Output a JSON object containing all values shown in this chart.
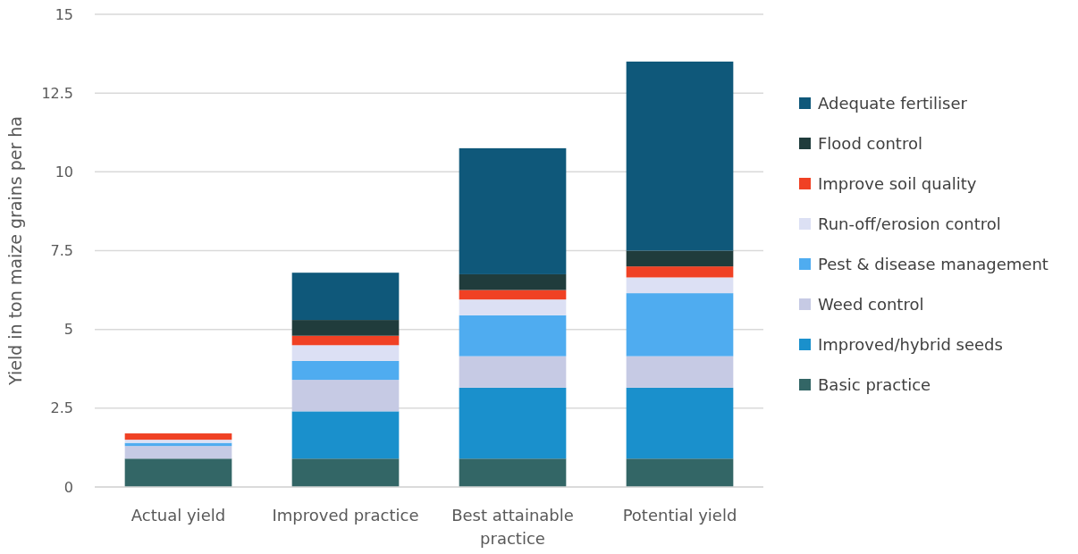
{
  "chart_data": {
    "type": "bar",
    "stacked": true,
    "ylabel": "Yield in ton maize grains per ha",
    "categories": [
      "Actual yield",
      "Improved practice",
      "Best attainable practice",
      "Potential yield"
    ],
    "series": [
      {
        "name": "Basic practice",
        "color": "#336666",
        "values": [
          0.9,
          0.9,
          0.9,
          0.9
        ]
      },
      {
        "name": "Improved/hybrid seeds",
        "color": "#1a90cc",
        "values": [
          0,
          1.5,
          2.25,
          2.25
        ]
      },
      {
        "name": "Weed control",
        "color": "#c6cae4",
        "values": [
          0.4,
          1.0,
          1.0,
          1.0
        ]
      },
      {
        "name": "Pest & disease management",
        "color": "#4facf0",
        "values": [
          0.1,
          0.6,
          1.3,
          2.0
        ]
      },
      {
        "name": "Run-off/erosion control",
        "color": "#dce0f4",
        "values": [
          0.1,
          0.5,
          0.5,
          0.5
        ]
      },
      {
        "name": "Improve soil quality",
        "color": "#f04124",
        "values": [
          0.2,
          0.3,
          0.3,
          0.35
        ]
      },
      {
        "name": "Flood control",
        "color": "#203c3c",
        "values": [
          0,
          0.5,
          0.5,
          0.5
        ]
      },
      {
        "name": "Adequate fertiliser",
        "color": "#0f587a",
        "values": [
          0,
          1.5,
          4.0,
          6.0
        ]
      }
    ],
    "ylim": [
      0,
      15
    ],
    "yticks": [
      0,
      2.5,
      5,
      7.5,
      10,
      12.5,
      15
    ],
    "grid": "y",
    "legend": "right"
  }
}
